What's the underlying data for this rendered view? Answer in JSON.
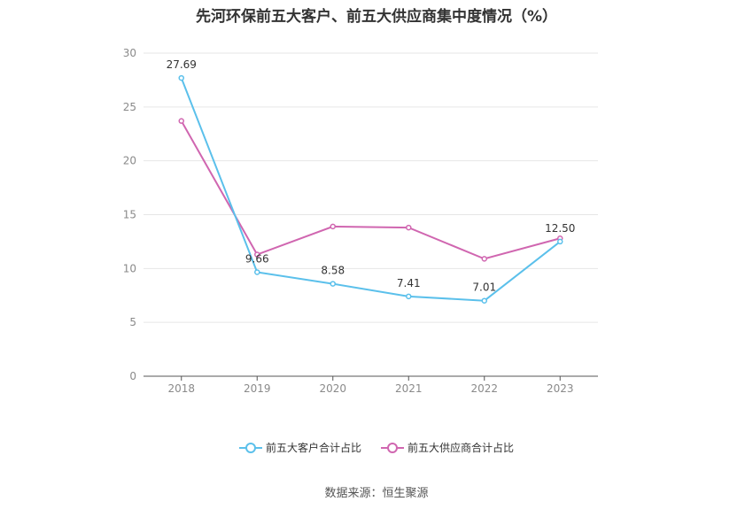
{
  "chart_data": {
    "type": "line",
    "title": "先河环保前五大客户、前五大供应商集中度情况（%）",
    "categories": [
      "2018",
      "2019",
      "2020",
      "2021",
      "2022",
      "2023"
    ],
    "ylim": [
      0,
      30
    ],
    "yticks": [
      0,
      5,
      10,
      15,
      20,
      25,
      30
    ],
    "grid": true,
    "legend_position": "bottom",
    "series": [
      {
        "name": "前五大客户合计占比",
        "color": "#5bc0eb",
        "values": [
          27.69,
          9.66,
          8.58,
          7.41,
          7.01,
          12.5
        ],
        "labels": [
          "27.69",
          "9.66",
          "8.58",
          "7.41",
          "7.01",
          "12.50"
        ]
      },
      {
        "name": "前五大供应商合计占比",
        "color": "#d066b0",
        "values": [
          23.7,
          11.3,
          13.9,
          13.8,
          10.9,
          12.8
        ],
        "labels": []
      }
    ]
  },
  "source": "数据来源：恒生聚源"
}
